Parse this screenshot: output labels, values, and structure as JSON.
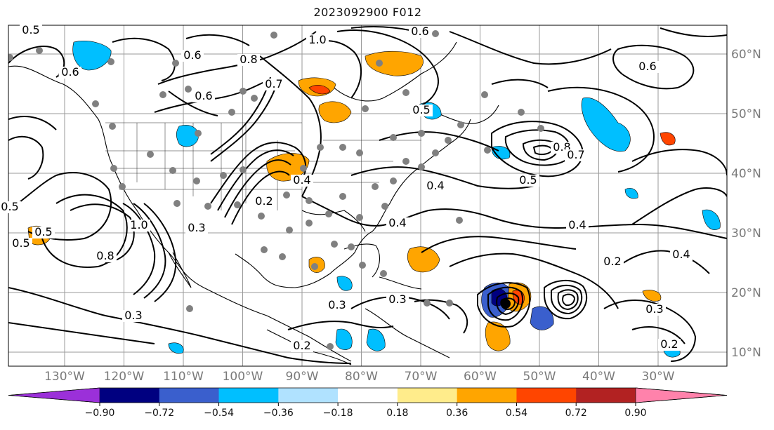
{
  "title": "2023092900 F012",
  "map": {
    "lon_labels": [
      {
        "text": "130°W",
        "lon": -130
      },
      {
        "text": "120°W",
        "lon": -120
      },
      {
        "text": "110°W",
        "lon": -110
      },
      {
        "text": "100°W",
        "lon": -100
      },
      {
        "text": "90°W",
        "lon": -90
      },
      {
        "text": "80°W",
        "lon": -80
      },
      {
        "text": "70°W",
        "lon": -70
      },
      {
        "text": "60°W",
        "lon": -60
      },
      {
        "text": "50°W",
        "lon": -50
      },
      {
        "text": "40°W",
        "lon": -40
      },
      {
        "text": "30°W",
        "lon": -30
      }
    ],
    "lat_labels": [
      {
        "text": "60°N",
        "lat": 60
      },
      {
        "text": "50°N",
        "lat": 50
      },
      {
        "text": "40°N",
        "lat": 40
      },
      {
        "text": "30°N",
        "lat": 30
      },
      {
        "text": "20°N",
        "lat": 20
      },
      {
        "text": "10°N",
        "lat": 10
      }
    ],
    "contour_labels": [
      "0.5",
      "0.6",
      "0.6",
      "0.6",
      "0.6",
      "0.8",
      "0.7",
      "1.0",
      "0.8",
      "0.7",
      "0.5",
      "0.6",
      "0.4",
      "0.4",
      "0.5",
      "0.4",
      "0.3",
      "0.3",
      "0.2",
      "0.2",
      "0.3",
      "0.4",
      "0.2",
      "0.5",
      "0.8",
      "1.0",
      "0.5",
      "0.5",
      "0.4",
      "0.3",
      "0.2",
      "0.3"
    ]
  },
  "colorbar": {
    "colors": [
      "#9b30d9",
      "#000080",
      "#3a5fcd",
      "#00bfff",
      "#b0e2ff",
      "#ffffff",
      "#ffec8b",
      "#ffa500",
      "#ff4500",
      "#b22222",
      "#ff82ab"
    ],
    "tick_labels": [
      "−0.90",
      "−0.72",
      "−0.54",
      "−0.36",
      "−0.18",
      "0.18",
      "0.36",
      "0.54",
      "0.72",
      "0.90"
    ]
  }
}
